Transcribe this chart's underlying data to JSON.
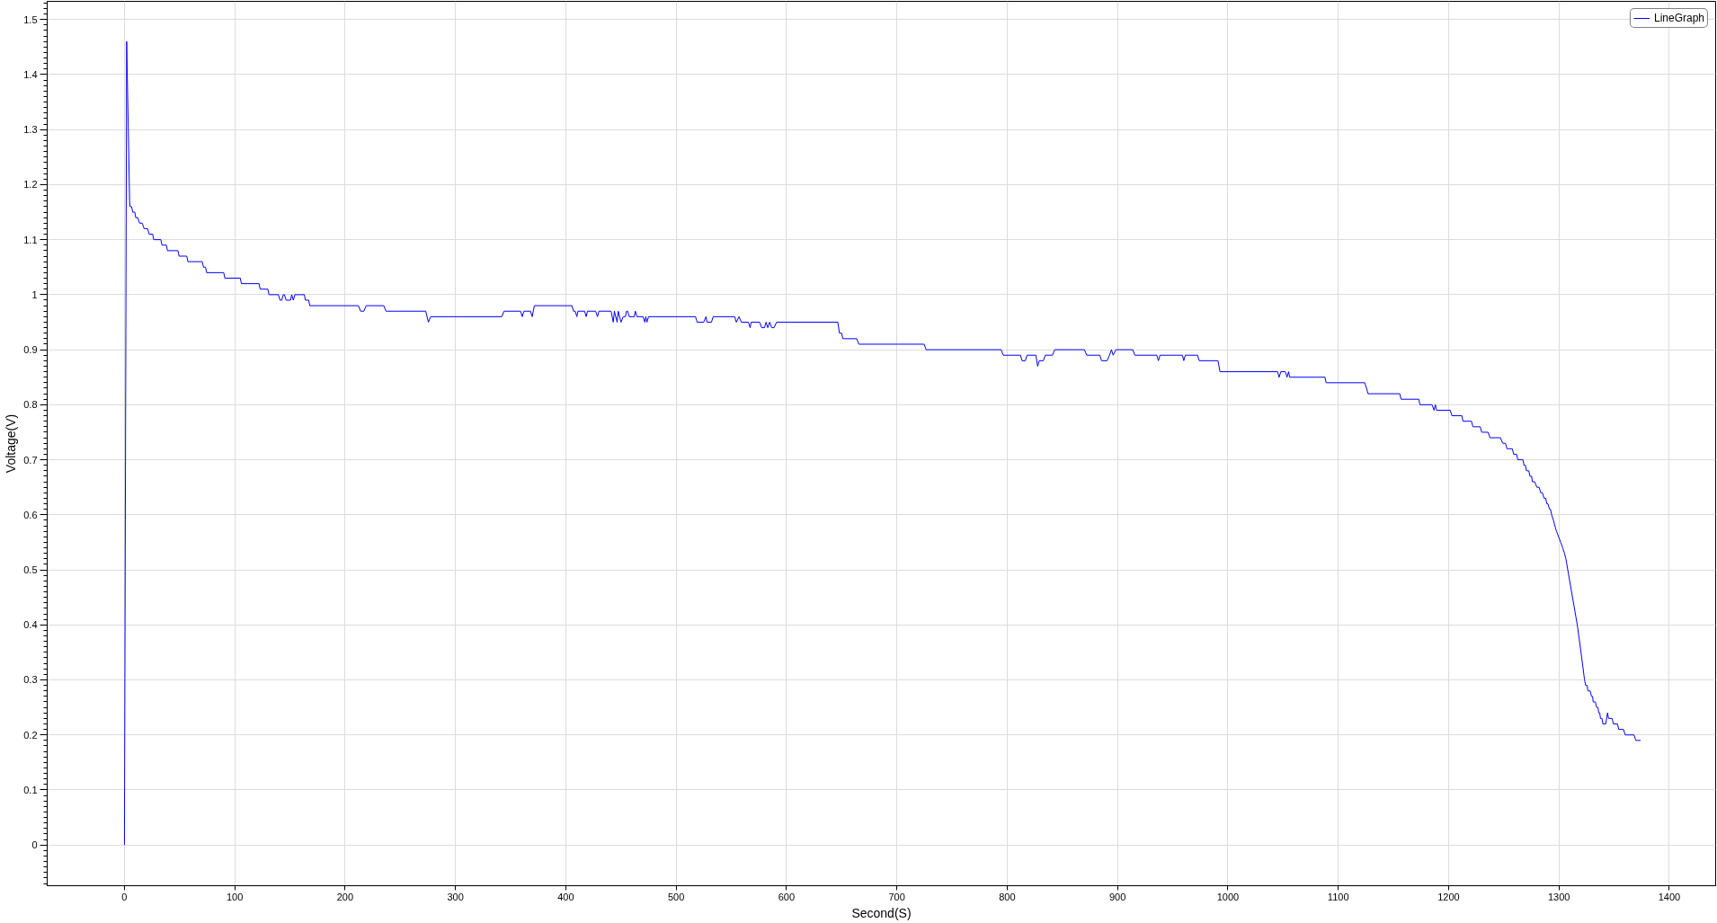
{
  "chart_data": {
    "type": "line",
    "xlabel": "Second(S)",
    "ylabel": "Voltage(V)",
    "xlim": [
      -70,
      1442
    ],
    "ylim": [
      -0.074,
      1.533
    ],
    "xticks": [
      0,
      100,
      200,
      300,
      400,
      500,
      600,
      700,
      800,
      900,
      1000,
      1100,
      1200,
      1300,
      1400
    ],
    "yticks": [
      0,
      0.1,
      0.2,
      0.3,
      0.4,
      0.5,
      0.6,
      0.7,
      0.8,
      0.9,
      1,
      1.1,
      1.2,
      1.3,
      1.4,
      1.5
    ],
    "grid": true,
    "legend": "top right",
    "x": [
      0,
      2,
      4.7,
      5,
      6.5,
      7.5,
      9.4,
      10.2,
      12.1,
      13.7,
      16.1,
      17.8,
      21,
      22.4,
      25.6,
      26.5,
      33,
      34,
      38,
      39,
      48.5,
      49.5,
      56.5,
      57.5,
      70.5,
      71.6,
      73.5,
      74.5,
      90,
      91,
      105,
      106,
      122,
      123,
      130,
      131,
      139.5,
      141,
      142.5,
      144,
      145,
      146.5,
      150.5,
      151.6,
      153,
      154.5,
      163,
      164,
      167,
      168,
      212,
      214,
      217,
      219,
      235,
      237,
      273,
      275.5,
      277.5,
      342,
      344,
      359,
      360.5,
      362,
      368,
      369.5,
      371.5,
      405.5,
      407,
      408.5,
      410,
      411,
      417,
      418.5,
      419.6,
      427,
      428.7,
      430,
      441,
      443,
      444,
      446.5,
      447.5,
      450,
      452,
      454,
      455,
      456,
      457.5,
      462,
      463,
      464.5,
      470,
      471.6,
      472.5,
      473.5,
      475,
      517.5,
      519,
      525,
      527,
      528,
      532,
      533.5,
      553,
      554.5,
      557,
      559,
      565.5,
      567,
      568,
      575.6,
      577.5,
      580,
      581.5,
      583,
      584.7,
      586.5,
      588.7,
      591,
      646.5,
      648,
      650,
      651,
      663.6,
      665.5,
      724.7,
      726.5,
      794.5,
      796.4,
      812,
      813.5,
      816.4,
      818,
      826,
      827.6,
      829,
      832.7,
      834.5,
      841,
      843,
      870,
      872,
      884,
      885.5,
      890.5,
      892.7,
      894.5,
      896,
      898.5,
      913.8,
      915.6,
      935.6,
      937,
      938.5,
      958.8,
      960,
      961.4,
      972.5,
      974,
      991,
      992.8,
      1045,
      1046.4,
      1048,
      1052,
      1053.6,
      1055,
      1056,
      1088,
      1089,
      1124,
      1125.6,
      1127,
      1155.7,
      1157,
      1173,
      1174,
      1185,
      1186.8,
      1188,
      1189,
      1201.5,
      1203,
      1212,
      1213,
      1220.7,
      1222,
      1228.6,
      1230,
      1235.8,
      1237.5,
      1247,
      1249,
      1251.5,
      1253,
      1257.7,
      1259,
      1261.6,
      1262.7,
      1267.4,
      1268.3,
      1269.6,
      1270.5,
      1272.7,
      1273.7,
      1275.2,
      1276,
      1278,
      1280,
      1282,
      1283.5,
      1285,
      1286.5,
      1288,
      1289,
      1290,
      1291.5,
      1292.3,
      1293.4,
      1295,
      1296.3,
      1297.8,
      1299.7,
      1301.6,
      1303.4,
      1305,
      1306.3,
      1308,
      1316.6,
      1320,
      1323.2,
      1324.2,
      1325.5,
      1326.2,
      1328.3,
      1329.5,
      1330.5,
      1331,
      1333,
      1334.2,
      1335.4,
      1336,
      1337,
      1337.6,
      1339,
      1339.8,
      1342.4,
      1344,
      1345,
      1348.2,
      1349.3,
      1353,
      1354.2,
      1358.5,
      1360,
      1368,
      1369.7,
      1374
    ],
    "series": [
      {
        "name": "LineGraph",
        "color": "#0000ff",
        "values": [
          0,
          1.46,
          1.17,
          1.16,
          1.16,
          1.15,
          1.15,
          1.14,
          1.14,
          1.13,
          1.13,
          1.12,
          1.12,
          1.11,
          1.11,
          1.1,
          1.1,
          1.09,
          1.09,
          1.08,
          1.08,
          1.07,
          1.07,
          1.06,
          1.06,
          1.05,
          1.05,
          1.04,
          1.04,
          1.03,
          1.03,
          1.02,
          1.02,
          1.01,
          1.01,
          1,
          1,
          0.99,
          0.99,
          1,
          1,
          0.99,
          0.99,
          1,
          0.99,
          1,
          1,
          0.99,
          0.99,
          0.98,
          0.98,
          0.97,
          0.97,
          0.98,
          0.98,
          0.97,
          0.97,
          0.95,
          0.96,
          0.96,
          0.97,
          0.97,
          0.96,
          0.97,
          0.97,
          0.96,
          0.98,
          0.98,
          0.97,
          0.97,
          0.96,
          0.97,
          0.97,
          0.96,
          0.97,
          0.97,
          0.96,
          0.97,
          0.97,
          0.95,
          0.97,
          0.95,
          0.97,
          0.95,
          0.96,
          0.96,
          0.97,
          0.97,
          0.96,
          0.96,
          0.97,
          0.96,
          0.96,
          0.95,
          0.96,
          0.95,
          0.96,
          0.96,
          0.95,
          0.95,
          0.96,
          0.95,
          0.95,
          0.96,
          0.96,
          0.95,
          0.96,
          0.95,
          0.95,
          0.94,
          0.95,
          0.95,
          0.94,
          0.94,
          0.95,
          0.94,
          0.95,
          0.94,
          0.94,
          0.95,
          0.95,
          0.93,
          0.93,
          0.92,
          0.92,
          0.91,
          0.91,
          0.9,
          0.9,
          0.89,
          0.89,
          0.88,
          0.88,
          0.89,
          0.89,
          0.87,
          0.88,
          0.88,
          0.89,
          0.89,
          0.9,
          0.9,
          0.89,
          0.89,
          0.88,
          0.88,
          0.89,
          0.9,
          0.89,
          0.9,
          0.9,
          0.89,
          0.89,
          0.88,
          0.89,
          0.89,
          0.88,
          0.89,
          0.89,
          0.88,
          0.88,
          0.86,
          0.86,
          0.85,
          0.86,
          0.86,
          0.85,
          0.86,
          0.85,
          0.85,
          0.84,
          0.84,
          0.83,
          0.82,
          0.82,
          0.81,
          0.81,
          0.8,
          0.8,
          0.79,
          0.8,
          0.79,
          0.79,
          0.78,
          0.78,
          0.77,
          0.77,
          0.76,
          0.76,
          0.75,
          0.75,
          0.74,
          0.74,
          0.73,
          0.73,
          0.72,
          0.72,
          0.71,
          0.71,
          0.7,
          0.7,
          0.69,
          0.69,
          0.68,
          0.68,
          0.67,
          0.67,
          0.66,
          0.66,
          0.65,
          0.65,
          0.64,
          0.64,
          0.63,
          0.63,
          0.62,
          0.62,
          0.61,
          0.61,
          0.6,
          0.59,
          0.58,
          0.57,
          0.56,
          0.55,
          0.54,
          0.53,
          0.52,
          0.5,
          0.4,
          0.35,
          0.3,
          0.29,
          0.29,
          0.28,
          0.28,
          0.27,
          0.27,
          0.26,
          0.26,
          0.25,
          0.25,
          0.24,
          0.24,
          0.23,
          0.23,
          0.22,
          0.22,
          0.24,
          0.23,
          0.23,
          0.22,
          0.22,
          0.21,
          0.21,
          0.2,
          0.2,
          0.19,
          0.19
        ]
      }
    ]
  }
}
